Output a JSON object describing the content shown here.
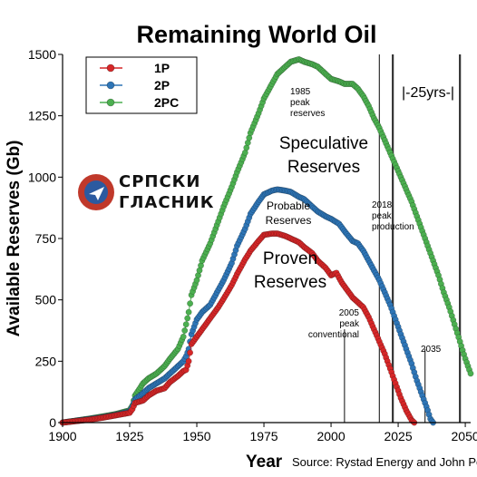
{
  "chart_data": {
    "type": "scatter",
    "title": "Remaining World Oil",
    "xlabel": "Year",
    "ylabel": "Available Reserves (Gb)",
    "source": "Source: Rystad Energy and John Peach",
    "xlim": [
      1900,
      2052
    ],
    "ylim": [
      0,
      1500
    ],
    "x_ticks": [
      1900,
      1925,
      1950,
      1975,
      2000,
      2025,
      2050
    ],
    "y_ticks": [
      0,
      250,
      500,
      750,
      1000,
      1250,
      1500
    ],
    "grid": false,
    "legend_position": "top-left",
    "series": [
      {
        "name": "1P",
        "color": "#d62728",
        "x": [
          1900,
          1905,
          1910,
          1915,
          1920,
          1925,
          1926,
          1927,
          1930,
          1932,
          1935,
          1938,
          1940,
          1943,
          1945,
          1946,
          1947,
          1948,
          1950,
          1952,
          1955,
          1958,
          1960,
          1963,
          1965,
          1968,
          1970,
          1973,
          1975,
          1978,
          1980,
          1983,
          1985,
          1988,
          1990,
          1993,
          1995,
          1998,
          2000,
          2002,
          2004,
          2006,
          2008,
          2010,
          2012,
          2014,
          2016,
          2018,
          2020,
          2022,
          2024,
          2026,
          2028,
          2030,
          2031
        ],
        "y": [
          0,
          6,
          12,
          20,
          30,
          40,
          55,
          80,
          90,
          110,
          130,
          140,
          165,
          190,
          210,
          215,
          250,
          320,
          350,
          380,
          425,
          470,
          505,
          560,
          605,
          665,
          700,
          740,
          765,
          770,
          770,
          760,
          750,
          735,
          715,
          690,
          660,
          630,
          600,
          610,
          570,
          540,
          510,
          490,
          470,
          430,
          380,
          330,
          280,
          220,
          160,
          100,
          50,
          10,
          0
        ]
      },
      {
        "name": "2P",
        "color": "#2e75b6",
        "x": [
          1900,
          1905,
          1910,
          1915,
          1920,
          1925,
          1926,
          1927,
          1930,
          1932,
          1935,
          1938,
          1940,
          1943,
          1945,
          1946,
          1947,
          1948,
          1950,
          1952,
          1955,
          1958,
          1960,
          1963,
          1965,
          1968,
          1970,
          1973,
          1975,
          1978,
          1980,
          1983,
          1985,
          1988,
          1990,
          1993,
          1995,
          1998,
          2000,
          2003,
          2005,
          2008,
          2010,
          2012,
          2014,
          2016,
          2018,
          2020,
          2022,
          2024,
          2026,
          2028,
          2030,
          2032,
          2034,
          2036,
          2037,
          2038
        ],
        "y": [
          0,
          7,
          14,
          22,
          32,
          45,
          65,
          95,
          120,
          140,
          160,
          180,
          200,
          230,
          250,
          270,
          300,
          360,
          420,
          450,
          480,
          540,
          580,
          650,
          720,
          790,
          850,
          900,
          930,
          945,
          950,
          945,
          940,
          920,
          910,
          880,
          860,
          840,
          830,
          810,
          780,
          740,
          730,
          700,
          660,
          620,
          580,
          530,
          480,
          420,
          360,
          300,
          240,
          170,
          110,
          50,
          15,
          0
        ]
      },
      {
        "name": "2PC",
        "color": "#4caf50",
        "x": [
          1900,
          1905,
          1910,
          1915,
          1920,
          1925,
          1926,
          1927,
          1930,
          1932,
          1935,
          1938,
          1940,
          1943,
          1945,
          1946,
          1947,
          1948,
          1950,
          1952,
          1955,
          1958,
          1960,
          1963,
          1965,
          1968,
          1970,
          1973,
          1975,
          1978,
          1980,
          1983,
          1985,
          1988,
          1990,
          1993,
          1995,
          1998,
          2000,
          2003,
          2005,
          2008,
          2010,
          2012,
          2014,
          2016,
          2018,
          2020,
          2022,
          2024,
          2026,
          2028,
          2030,
          2032,
          2034,
          2036,
          2038,
          2040,
          2042,
          2044,
          2046,
          2048,
          2050,
          2052
        ],
        "y": [
          0,
          8,
          16,
          25,
          35,
          50,
          70,
          110,
          160,
          180,
          200,
          230,
          260,
          300,
          350,
          400,
          450,
          520,
          580,
          660,
          730,
          820,
          880,
          960,
          1020,
          1100,
          1180,
          1260,
          1320,
          1380,
          1420,
          1450,
          1470,
          1480,
          1470,
          1460,
          1450,
          1420,
          1400,
          1390,
          1380,
          1380,
          1360,
          1330,
          1290,
          1240,
          1200,
          1150,
          1100,
          1050,
          1000,
          950,
          900,
          840,
          780,
          720,
          660,
          600,
          530,
          470,
          400,
          330,
          260,
          200
        ]
      }
    ],
    "annotations": {
      "speculative": [
        "Speculative",
        "Reserves"
      ],
      "probable": [
        "Probable",
        "Reserves"
      ],
      "proven": [
        "Proven",
        "Reserves"
      ],
      "peak_1985": [
        "1985",
        "peak",
        "reserves"
      ],
      "peak_2018": [
        "2018",
        "peak",
        "production"
      ],
      "peak_2005": [
        "2005",
        "peak",
        "conventional"
      ],
      "year_2035": "2035",
      "yrs": "|-25yrs-|"
    },
    "vlines": [
      2005,
      2018,
      2023,
      2035,
      2048
    ],
    "watermark": "СРПСКИ ГЛАСНИК"
  }
}
